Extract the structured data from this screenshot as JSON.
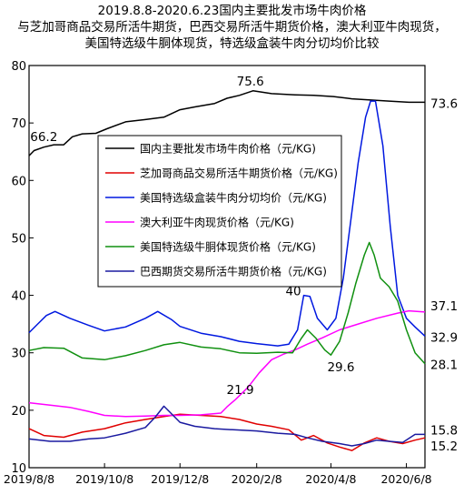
{
  "chart_data": {
    "type": "line",
    "title_lines": [
      "2019.8.8-2020.6.23国内主要批发市场牛肉价格",
      "与芝加哥商品交易所活牛期货，巴西交易所活牛期货价格，澳大利亚牛肉现货，",
      "美国特选级牛胴体现货，特选级盒装牛肉分切均价比较"
    ],
    "x_ticks": [
      "2019/8/8",
      "2019/10/8",
      "2019/12/8",
      "2020/2/8",
      "2020/4/8",
      "2020/6/8"
    ],
    "x_range": [
      "2019-08-08",
      "2020-06-23"
    ],
    "ylim": [
      10,
      80
    ],
    "y_ticks": [
      10,
      20,
      30,
      40,
      50,
      60,
      70,
      80
    ],
    "legend_position": "upper-left",
    "series": [
      {
        "name": "国内主要批发市场牛肉价格（元/KG)",
        "color": "#000000",
        "points": [
          [
            "2019-08-08",
            64.3
          ],
          [
            "2019-08-12",
            65.2
          ],
          [
            "2019-08-20",
            65.8
          ],
          [
            "2019-08-28",
            66.2
          ],
          [
            "2019-09-05",
            66.2
          ],
          [
            "2019-09-12",
            67.6
          ],
          [
            "2019-09-20",
            68.1
          ],
          [
            "2019-10-01",
            68.2
          ],
          [
            "2019-10-10",
            69.0
          ],
          [
            "2019-10-25",
            70.2
          ],
          [
            "2019-11-10",
            70.6
          ],
          [
            "2019-11-25",
            71.0
          ],
          [
            "2019-12-08",
            72.3
          ],
          [
            "2019-12-20",
            72.8
          ],
          [
            "2020-01-05",
            73.4
          ],
          [
            "2020-01-15",
            74.3
          ],
          [
            "2020-01-25",
            74.8
          ],
          [
            "2020-02-05",
            75.6
          ],
          [
            "2020-02-20",
            75.1
          ],
          [
            "2020-03-10",
            74.9
          ],
          [
            "2020-03-25",
            74.8
          ],
          [
            "2020-04-10",
            74.6
          ],
          [
            "2020-04-25",
            74.2
          ],
          [
            "2020-05-10",
            74.0
          ],
          [
            "2020-05-25",
            73.8
          ],
          [
            "2020-06-10",
            73.6
          ],
          [
            "2020-06-23",
            73.6
          ]
        ]
      },
      {
        "name": "芝加哥商品交易所活牛期货价格（元/KG)",
        "color": "#e00000",
        "points": [
          [
            "2019-08-08",
            16.8
          ],
          [
            "2019-08-20",
            15.6
          ],
          [
            "2019-09-05",
            15.3
          ],
          [
            "2019-09-20",
            16.2
          ],
          [
            "2019-10-08",
            16.8
          ],
          [
            "2019-10-25",
            17.8
          ],
          [
            "2019-11-10",
            18.4
          ],
          [
            "2019-11-25",
            18.9
          ],
          [
            "2019-12-08",
            19.3
          ],
          [
            "2019-12-25",
            19.1
          ],
          [
            "2020-01-10",
            18.9
          ],
          [
            "2020-01-25",
            18.4
          ],
          [
            "2020-02-08",
            17.6
          ],
          [
            "2020-02-20",
            17.2
          ],
          [
            "2020-03-05",
            16.6
          ],
          [
            "2020-03-15",
            14.8
          ],
          [
            "2020-03-25",
            15.6
          ],
          [
            "2020-04-05",
            14.3
          ],
          [
            "2020-04-15",
            13.6
          ],
          [
            "2020-04-25",
            13.0
          ],
          [
            "2020-05-05",
            14.3
          ],
          [
            "2020-05-15",
            15.2
          ],
          [
            "2020-05-25",
            14.6
          ],
          [
            "2020-06-05",
            14.2
          ],
          [
            "2020-06-15",
            14.8
          ],
          [
            "2020-06-23",
            15.2
          ]
        ]
      },
      {
        "name": "美国特选级盒装牛肉分切均价（元/KG)",
        "color": "#0018e0",
        "points": [
          [
            "2019-08-08",
            33.5
          ],
          [
            "2019-08-15",
            35.0
          ],
          [
            "2019-08-22",
            36.5
          ],
          [
            "2019-08-29",
            37.2
          ],
          [
            "2019-09-10",
            36.0
          ],
          [
            "2019-09-25",
            34.8
          ],
          [
            "2019-10-08",
            33.8
          ],
          [
            "2019-10-25",
            34.5
          ],
          [
            "2019-11-10",
            36.0
          ],
          [
            "2019-11-20",
            37.2
          ],
          [
            "2019-12-01",
            35.8
          ],
          [
            "2019-12-08",
            34.6
          ],
          [
            "2019-12-25",
            33.4
          ],
          [
            "2020-01-10",
            32.8
          ],
          [
            "2020-01-25",
            32.0
          ],
          [
            "2020-02-08",
            31.6
          ],
          [
            "2020-02-25",
            31.2
          ],
          [
            "2020-03-05",
            31.5
          ],
          [
            "2020-03-12",
            34.0
          ],
          [
            "2020-03-17",
            40.0
          ],
          [
            "2020-03-22",
            39.8
          ],
          [
            "2020-03-28",
            36.0
          ],
          [
            "2020-04-05",
            34.0
          ],
          [
            "2020-04-12",
            36.0
          ],
          [
            "2020-04-18",
            43.0
          ],
          [
            "2020-04-24",
            53.0
          ],
          [
            "2020-04-30",
            63.0
          ],
          [
            "2020-05-06",
            71.0
          ],
          [
            "2020-05-10",
            73.8
          ],
          [
            "2020-05-14",
            73.8
          ],
          [
            "2020-05-20",
            66.0
          ],
          [
            "2020-05-26",
            52.0
          ],
          [
            "2020-06-01",
            40.0
          ],
          [
            "2020-06-08",
            36.0
          ],
          [
            "2020-06-15",
            34.5
          ],
          [
            "2020-06-23",
            32.9
          ]
        ]
      },
      {
        "name": "澳大利亚牛肉现货价格（元/KG)",
        "color": "#ff00ff",
        "points": [
          [
            "2019-08-08",
            21.3
          ],
          [
            "2019-08-25",
            20.9
          ],
          [
            "2019-09-10",
            20.5
          ],
          [
            "2019-09-25",
            19.8
          ],
          [
            "2019-10-08",
            19.1
          ],
          [
            "2019-10-25",
            18.9
          ],
          [
            "2019-11-10",
            19.0
          ],
          [
            "2019-11-25",
            19.1
          ],
          [
            "2019-12-08",
            19.1
          ],
          [
            "2019-12-25",
            19.2
          ],
          [
            "2020-01-10",
            19.5
          ],
          [
            "2020-01-15",
            20.6
          ],
          [
            "2020-01-22",
            21.9
          ],
          [
            "2020-02-01",
            24.0
          ],
          [
            "2020-02-10",
            26.5
          ],
          [
            "2020-02-20",
            28.8
          ],
          [
            "2020-03-01",
            29.8
          ],
          [
            "2020-03-10",
            30.5
          ],
          [
            "2020-03-20",
            31.5
          ],
          [
            "2020-04-01",
            32.6
          ],
          [
            "2020-04-15",
            34.0
          ],
          [
            "2020-04-30",
            35.0
          ],
          [
            "2020-05-15",
            36.0
          ],
          [
            "2020-06-01",
            36.9
          ],
          [
            "2020-06-10",
            37.3
          ],
          [
            "2020-06-23",
            37.1
          ]
        ]
      },
      {
        "name": "美国特选级牛胴体现货价格（元/KG)",
        "color": "#109010",
        "points": [
          [
            "2019-08-08",
            30.4
          ],
          [
            "2019-08-20",
            30.9
          ],
          [
            "2019-09-05",
            30.8
          ],
          [
            "2019-09-20",
            29.1
          ],
          [
            "2019-10-08",
            28.8
          ],
          [
            "2019-10-25",
            29.5
          ],
          [
            "2019-11-10",
            30.4
          ],
          [
            "2019-11-25",
            31.4
          ],
          [
            "2019-12-08",
            31.8
          ],
          [
            "2019-12-25",
            31.0
          ],
          [
            "2020-01-10",
            30.7
          ],
          [
            "2020-01-25",
            30.0
          ],
          [
            "2020-02-08",
            29.9
          ],
          [
            "2020-02-25",
            30.1
          ],
          [
            "2020-03-08",
            30.0
          ],
          [
            "2020-03-15",
            32.5
          ],
          [
            "2020-03-20",
            34.0
          ],
          [
            "2020-03-27",
            32.5
          ],
          [
            "2020-04-03",
            30.5
          ],
          [
            "2020-04-08",
            29.6
          ],
          [
            "2020-04-15",
            32.0
          ],
          [
            "2020-04-22",
            37.0
          ],
          [
            "2020-04-28",
            42.0
          ],
          [
            "2020-05-05",
            47.0
          ],
          [
            "2020-05-09",
            49.2
          ],
          [
            "2020-05-13",
            47.0
          ],
          [
            "2020-05-18",
            43.0
          ],
          [
            "2020-05-25",
            41.5
          ],
          [
            "2020-06-01",
            39.0
          ],
          [
            "2020-06-08",
            34.0
          ],
          [
            "2020-06-15",
            30.0
          ],
          [
            "2020-06-23",
            28.1
          ]
        ]
      },
      {
        "name": "巴西期货交易所活牛期货价格（元/KG)",
        "color": "#1a1aa0",
        "points": [
          [
            "2019-08-08",
            15.0
          ],
          [
            "2019-08-25",
            14.6
          ],
          [
            "2019-09-10",
            14.6
          ],
          [
            "2019-09-25",
            15.0
          ],
          [
            "2019-10-08",
            15.2
          ],
          [
            "2019-10-25",
            16.0
          ],
          [
            "2019-11-10",
            17.0
          ],
          [
            "2019-11-18",
            18.8
          ],
          [
            "2019-11-25",
            20.7
          ],
          [
            "2019-12-02",
            19.2
          ],
          [
            "2019-12-08",
            17.9
          ],
          [
            "2019-12-20",
            17.2
          ],
          [
            "2020-01-05",
            16.8
          ],
          [
            "2020-01-20",
            16.6
          ],
          [
            "2020-02-08",
            16.4
          ],
          [
            "2020-02-25",
            16.0
          ],
          [
            "2020-03-10",
            15.8
          ],
          [
            "2020-03-20",
            15.2
          ],
          [
            "2020-04-01",
            14.6
          ],
          [
            "2020-04-15",
            14.2
          ],
          [
            "2020-04-25",
            13.8
          ],
          [
            "2020-05-05",
            14.2
          ],
          [
            "2020-05-15",
            14.8
          ],
          [
            "2020-05-25",
            14.6
          ],
          [
            "2020-06-05",
            14.4
          ],
          [
            "2020-06-15",
            15.8
          ],
          [
            "2020-06-23",
            15.8
          ]
        ]
      }
    ],
    "annotations": [
      {
        "text": "66.2",
        "date": "2019-08-28",
        "value": 66.2
      },
      {
        "text": "75.6",
        "date": "2020-02-05",
        "value": 75.6
      },
      {
        "text": "73.6",
        "date": "2020-06-23",
        "value": 73.6
      },
      {
        "text": "40",
        "date": "2020-03-17",
        "value": 40.0
      },
      {
        "text": "37.1",
        "date": "2020-06-23",
        "value": 37.1
      },
      {
        "text": "32.9",
        "date": "2020-06-23",
        "value": 32.9
      },
      {
        "text": "29.6",
        "date": "2020-04-08",
        "value": 29.6
      },
      {
        "text": "28.1",
        "date": "2020-06-23",
        "value": 28.1
      },
      {
        "text": "21.9",
        "date": "2020-01-22",
        "value": 21.9
      },
      {
        "text": "15.8",
        "date": "2020-06-23",
        "value": 15.8
      },
      {
        "text": "15.2",
        "date": "2020-06-23",
        "value": 15.2
      }
    ]
  }
}
